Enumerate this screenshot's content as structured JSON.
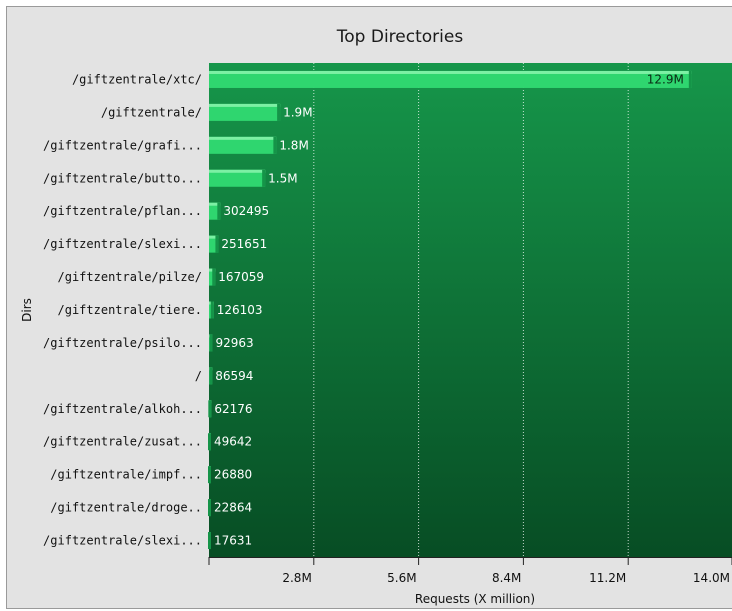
{
  "chart_data": {
    "type": "bar",
    "orientation": "horizontal",
    "title": "Top Directories",
    "xlabel": "Requests (X million)",
    "ylabel": "Dirs",
    "xlim": [
      0,
      14.0
    ],
    "xticks": [
      "2.8M",
      "5.6M",
      "8.4M",
      "11.2M",
      "14.0M"
    ],
    "xtick_values": [
      2.8,
      5.6,
      8.4,
      11.2,
      14.0
    ],
    "grid": true,
    "categories": [
      "/giftzentrale/xtc/",
      "/giftzentrale/",
      "/giftzentrale/grafi...",
      "/giftzentrale/butto...",
      "/giftzentrale/pflan...",
      "/giftzentrale/slexi...",
      "/giftzentrale/pilze/",
      "/giftzentrale/tiere.",
      "/giftzentrale/psilo...",
      "/",
      "/giftzentrale/alkoh...",
      "/giftzentrale/zusat...",
      "/giftzentrale/impf...",
      "/giftzentrale/droge..",
      "/giftzentrale/slexi..."
    ],
    "values": [
      12.9,
      1.9,
      1.8,
      1.5,
      0.302495,
      0.251651,
      0.167059,
      0.126103,
      0.092963,
      0.086594,
      0.062176,
      0.049642,
      0.02688,
      0.022864,
      0.017631
    ],
    "value_labels": [
      "12.9M",
      "1.9M",
      "1.8M",
      "1.5M",
      "302495",
      "251651",
      "167059",
      "126103",
      "92963",
      "86594",
      "62176",
      "49642",
      "26880",
      "22864",
      "17631"
    ],
    "colors": {
      "bar": "#2fd66f",
      "bar_top": "#7cf0a4",
      "bar_side": "#159448",
      "plot_bg_top": "#16964a",
      "plot_bg_bottom": "#074d24",
      "frame_bg": "#e3e3e3"
    }
  }
}
